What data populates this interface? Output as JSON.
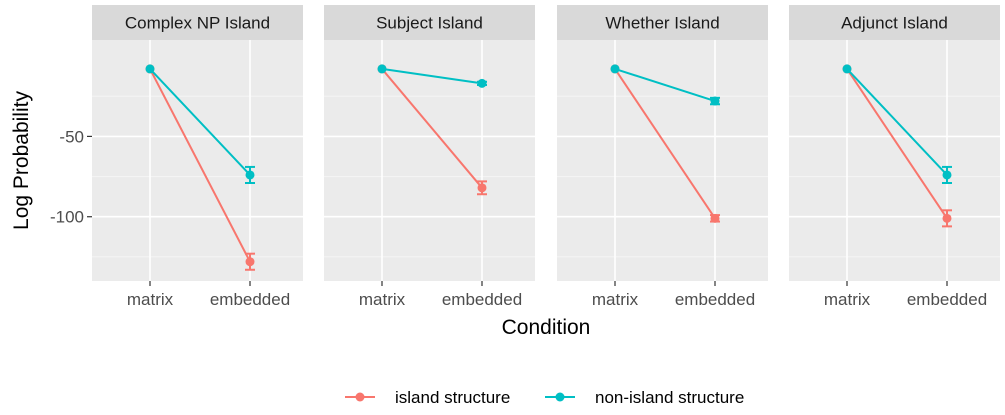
{
  "chart_data": {
    "type": "line",
    "xlabel": "Condition",
    "ylabel": "Log Probability",
    "categories": [
      "matrix",
      "embedded"
    ],
    "ylim": [
      -140,
      10
    ],
    "yticks": [
      -50,
      -100
    ],
    "grid": true,
    "legend_position": "bottom",
    "colors": {
      "island structure": "#F8766D",
      "non-island structure": "#00BFC4"
    },
    "legend": [
      "island structure",
      "non-island structure"
    ],
    "panels": [
      {
        "title": "Complex NP Island",
        "series": [
          {
            "name": "island structure",
            "values": [
              -8,
              -128
            ],
            "err": [
              0,
              5
            ]
          },
          {
            "name": "non-island structure",
            "values": [
              -8,
              -74
            ],
            "err": [
              0,
              5
            ]
          }
        ]
      },
      {
        "title": "Subject Island",
        "series": [
          {
            "name": "island structure",
            "values": [
              -8,
              -82
            ],
            "err": [
              0,
              4
            ]
          },
          {
            "name": "non-island structure",
            "values": [
              -8,
              -17
            ],
            "err": [
              0,
              1
            ]
          }
        ]
      },
      {
        "title": "Whether Island",
        "series": [
          {
            "name": "island structure",
            "values": [
              -8,
              -101
            ],
            "err": [
              0,
              2
            ]
          },
          {
            "name": "non-island structure",
            "values": [
              -8,
              -28
            ],
            "err": [
              0,
              2
            ]
          }
        ]
      },
      {
        "title": "Adjunct Island",
        "series": [
          {
            "name": "island structure",
            "values": [
              -8,
              -101
            ],
            "err": [
              0,
              5
            ]
          },
          {
            "name": "non-island structure",
            "values": [
              -8,
              -74
            ],
            "err": [
              0,
              5
            ]
          }
        ]
      }
    ]
  }
}
